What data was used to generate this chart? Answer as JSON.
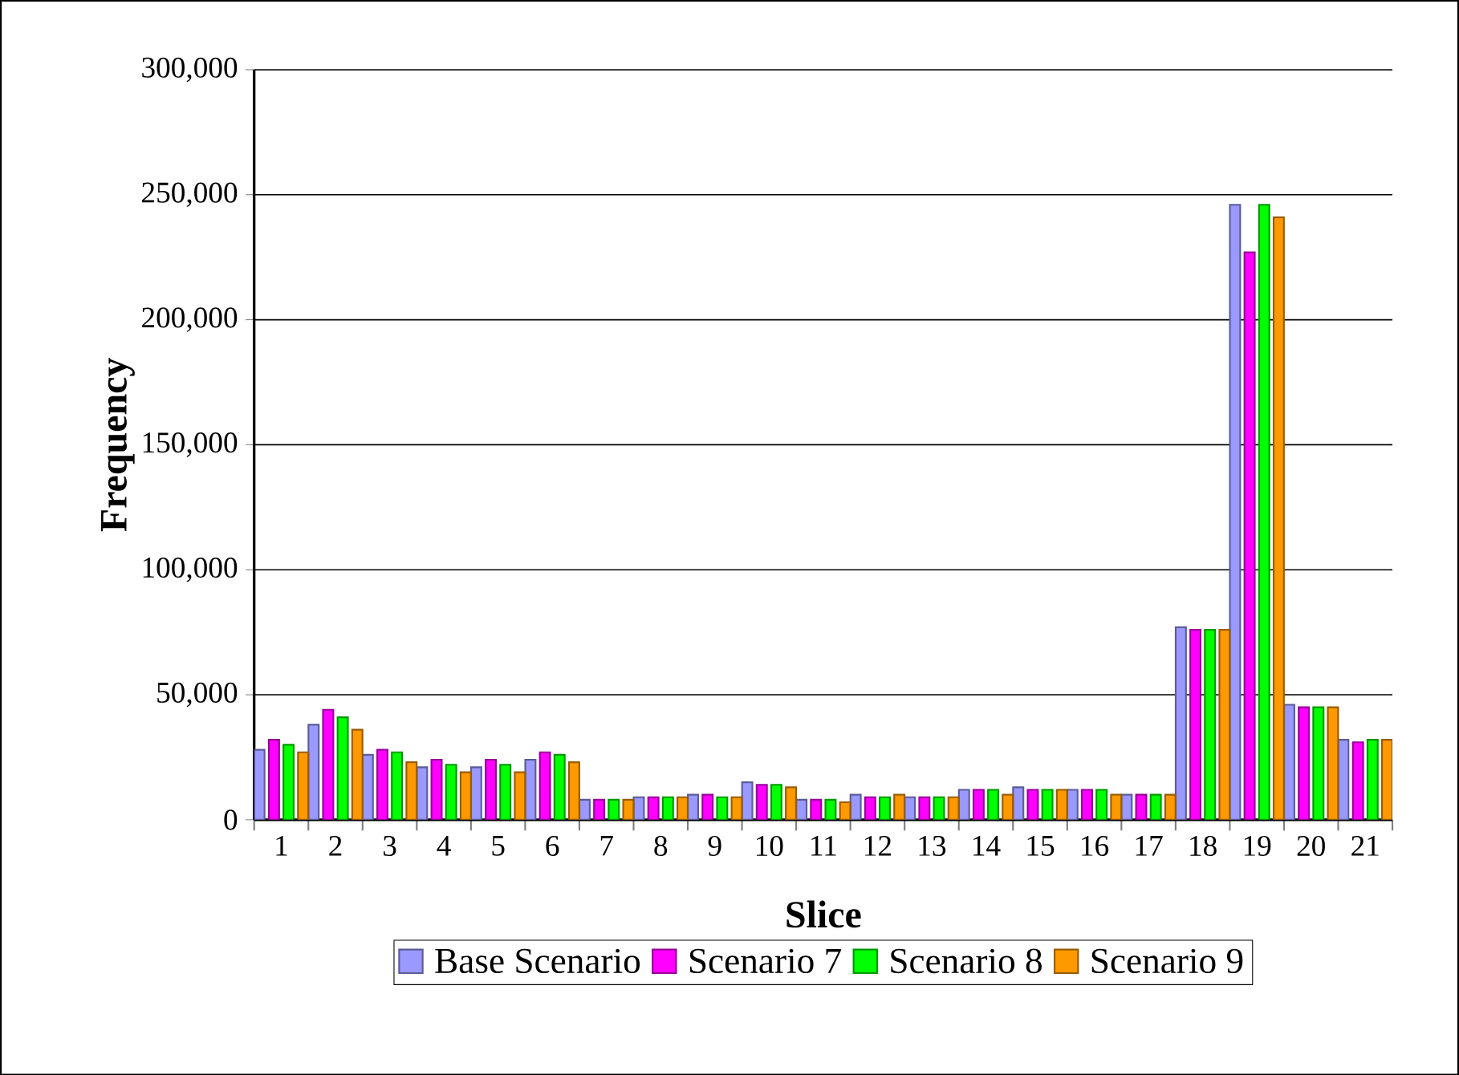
{
  "chart_data": {
    "type": "bar",
    "xlabel": "Slice",
    "ylabel": "Frequency",
    "categories": [
      "1",
      "2",
      "3",
      "4",
      "5",
      "6",
      "7",
      "8",
      "9",
      "10",
      "11",
      "12",
      "13",
      "14",
      "15",
      "16",
      "17",
      "18",
      "19",
      "20",
      "21"
    ],
    "series": [
      {
        "name": "Base Scenario",
        "color": "#9999ff",
        "values": [
          28000,
          38000,
          26000,
          21000,
          21000,
          24000,
          8000,
          9000,
          10000,
          15000,
          8000,
          10000,
          9000,
          12000,
          13000,
          12000,
          10000,
          77000,
          246000,
          46000,
          32000
        ]
      },
      {
        "name": "Scenario 7",
        "color": "#ff00ff",
        "values": [
          32000,
          44000,
          28000,
          24000,
          24000,
          27000,
          8000,
          9000,
          10000,
          14000,
          8000,
          9000,
          9000,
          12000,
          12000,
          12000,
          10000,
          76000,
          227000,
          45000,
          31000
        ]
      },
      {
        "name": "Scenario 8",
        "color": "#00ff00",
        "values": [
          30000,
          41000,
          27000,
          22000,
          22000,
          26000,
          8000,
          9000,
          9000,
          14000,
          8000,
          9000,
          9000,
          12000,
          12000,
          12000,
          10000,
          76000,
          246000,
          45000,
          32000
        ]
      },
      {
        "name": "Scenario 9",
        "color": "#ff9900",
        "values": [
          27000,
          36000,
          23000,
          19000,
          19000,
          23000,
          8000,
          9000,
          9000,
          13000,
          7000,
          10000,
          9000,
          10000,
          12000,
          10000,
          10000,
          76000,
          241000,
          45000,
          32000
        ]
      }
    ],
    "ylim": [
      0,
      300000
    ],
    "yticks": [
      {
        "value": 0,
        "label": "0"
      },
      {
        "value": 50000,
        "label": "50,000"
      },
      {
        "value": 100000,
        "label": "100,000"
      },
      {
        "value": 150000,
        "label": "150,000"
      },
      {
        "value": 200000,
        "label": "200,000"
      },
      {
        "value": 250000,
        "label": "250,000"
      },
      {
        "value": 300000,
        "label": "300,000"
      }
    ],
    "grid": "y",
    "legend": "bottom"
  }
}
